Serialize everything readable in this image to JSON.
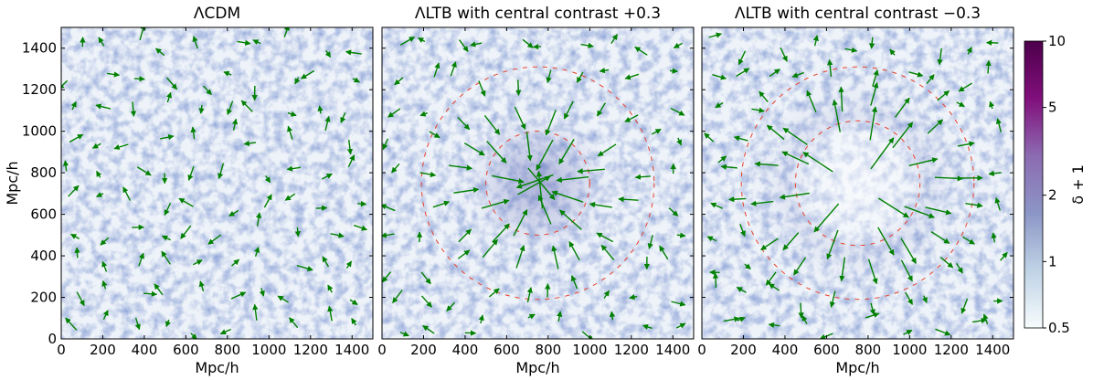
{
  "chart_data": [
    {
      "type": "heatmap",
      "title": "ΛCDM",
      "xlabel": "Mpc/h",
      "ylabel": "Mpc/h",
      "xlim": [
        0,
        1500
      ],
      "ylim": [
        0,
        1500
      ],
      "xticks": [
        "0",
        "200",
        "400",
        "600",
        "800",
        "1000",
        "1200",
        "1400"
      ],
      "yticks": [
        "0",
        "200",
        "400",
        "600",
        "800",
        "1000",
        "1200",
        "1400"
      ],
      "void_contour": "none",
      "velocity_arrows": "random"
    },
    {
      "type": "heatmap",
      "title": "ΛLTB with central contrast +0.3",
      "xlabel": "Mpc/h",
      "xlim": [
        0,
        1500
      ],
      "ylim": [
        0,
        1500
      ],
      "xticks": [
        "0",
        "200",
        "400",
        "600",
        "800",
        "1000",
        "1200",
        "1400"
      ],
      "center": [
        750,
        750
      ],
      "contour_radii": [
        250,
        560
      ],
      "velocity_arrows": "converging toward center"
    },
    {
      "type": "heatmap",
      "title": "ΛLTB with central contrast −0.3",
      "xlabel": "Mpc/h",
      "xlim": [
        0,
        1500
      ],
      "ylim": [
        0,
        1500
      ],
      "xticks": [
        "0",
        "200",
        "400",
        "600",
        "800",
        "1000",
        "1200",
        "1400"
      ],
      "center": [
        750,
        750
      ],
      "contour_radii": [
        300,
        560
      ],
      "velocity_arrows": "diverging from center"
    }
  ],
  "colorbar": {
    "label": "δ + 1",
    "scale": "log",
    "range": [
      0.5,
      10
    ],
    "ticks": [
      "0.5",
      "1",
      "2",
      "5",
      "10"
    ],
    "colors": [
      "#f7fcfd",
      "#bfd3e6",
      "#8c96c6",
      "#8c6bb1",
      "#810f7c",
      "#4d004b"
    ]
  },
  "colors": {
    "arrow": "#008000",
    "contour": "#e8402a"
  }
}
